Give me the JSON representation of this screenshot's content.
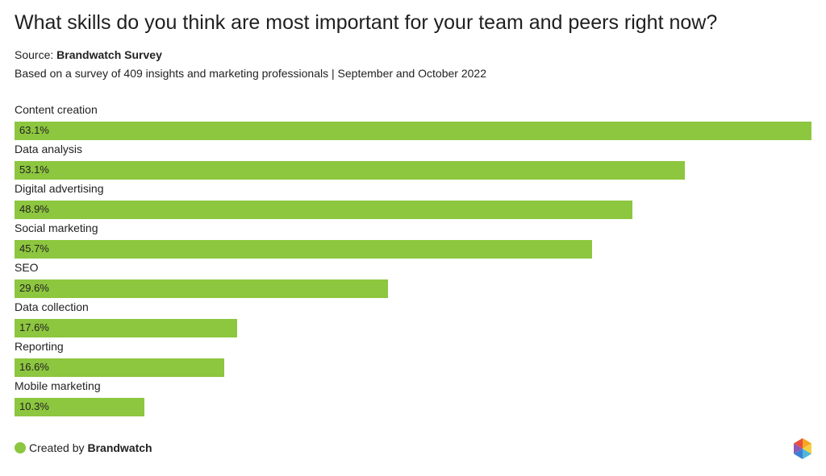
{
  "header": {
    "title": "What skills do you think are most important for your team and peers right now?",
    "source_prefix": "Source:",
    "source_name": "Brandwatch Survey",
    "subtitle": "Based on a survey of 409 insights and marketing professionals | September and October 2022"
  },
  "colors": {
    "bar": "#8dc63f",
    "text": "#222222"
  },
  "chart_data": {
    "type": "bar",
    "orientation": "horizontal",
    "categories": [
      "Content creation",
      "Data analysis",
      "Digital advertising",
      "Social marketing",
      "SEO",
      "Data collection",
      "Reporting",
      "Mobile marketing"
    ],
    "values": [
      63.1,
      53.1,
      48.9,
      45.7,
      29.6,
      17.6,
      16.6,
      10.3
    ],
    "value_labels": [
      "63.1%",
      "53.1%",
      "48.9%",
      "45.7%",
      "29.6%",
      "17.6%",
      "16.6%",
      "10.3%"
    ],
    "xlim": [
      0,
      63.1
    ],
    "grid": false,
    "legend": "none"
  },
  "footer": {
    "created_by_prefix": "Created by",
    "created_by_name": "Brandwatch",
    "logo_icon": "brandwatch-hexagon-logo-icon"
  }
}
